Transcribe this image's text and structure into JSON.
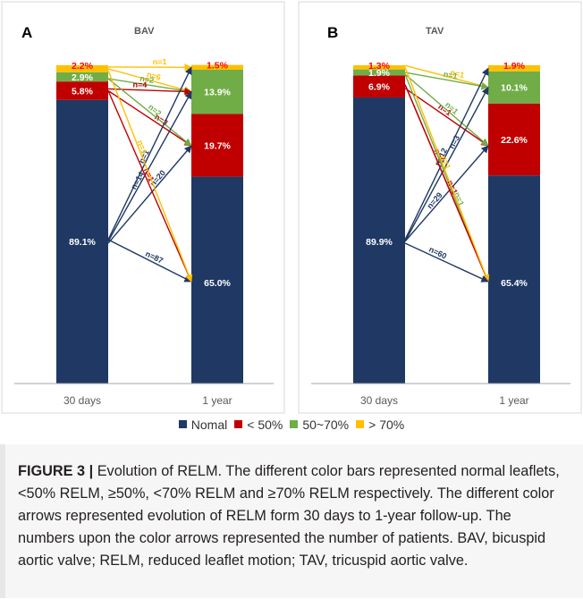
{
  "colors": {
    "normal": "#1f3864",
    "lt50": "#c00000",
    "mid": "#70ad47",
    "gt70": "#ffc000",
    "axis": "#a6a6a6",
    "panel_border": "#d9d9d9",
    "label_red": "#ff0000"
  },
  "legend": [
    {
      "label": "Nomal",
      "color": "#1f3864"
    },
    {
      "label": "< 50%",
      "color": "#c00000"
    },
    {
      "label": "50~70%",
      "color": "#70ad47"
    },
    {
      "label": "> 70%",
      "color": "#ffc000"
    }
  ],
  "chart_data": [
    {
      "type": "bar",
      "panel_letter": "A",
      "title": "BAV",
      "categories": [
        "30 days",
        "1 year"
      ],
      "stack_order": [
        "Nomal",
        "< 50%",
        "50~70%",
        "> 70%"
      ],
      "series": [
        {
          "name": "Nomal",
          "values": [
            89.1,
            65.0
          ],
          "labels": [
            "89.1%",
            "65.0%"
          ]
        },
        {
          "name": "< 50%",
          "values": [
            5.8,
            19.7
          ],
          "labels": [
            "5.8%",
            "19.7%"
          ]
        },
        {
          "name": "50~70%",
          "values": [
            2.9,
            13.9
          ],
          "labels": [
            "2.9%",
            "13.9%"
          ]
        },
        {
          "name": "> 70%",
          "values": [
            2.2,
            1.5
          ],
          "labels": [
            "2.2%",
            "1.5%"
          ]
        }
      ],
      "flows": [
        {
          "from": "> 70%",
          "to": "> 70%",
          "label": "n=1"
        },
        {
          "from": "> 70%",
          "to": "50~70%",
          "label": "n=6"
        },
        {
          "from": "50~70%",
          "to": "50~70%",
          "label": "n=2"
        },
        {
          "from": "< 50%",
          "to": "50~70%",
          "label": "n=4"
        },
        {
          "from": "< 50%",
          "to": "< 50%",
          "label": "n=3"
        },
        {
          "from": "50~70%",
          "to": "< 50%",
          "label": "n=2"
        },
        {
          "from": "Nomal",
          "to": "> 70%",
          "label": "n=1"
        },
        {
          "from": "Nomal",
          "to": "50~70%",
          "label": "n=14"
        },
        {
          "from": "Nomal",
          "to": "< 50%",
          "label": "n=20"
        },
        {
          "from": "Nomal",
          "to": "Nomal",
          "label": "n=87"
        },
        {
          "from": "< 50%",
          "to": "Nomal",
          "label": "n=1"
        },
        {
          "from": "> 70%",
          "to": "Nomal",
          "label": "n=1"
        }
      ]
    },
    {
      "type": "bar",
      "panel_letter": "B",
      "title": "TAV",
      "categories": [
        "30 days",
        "1 year"
      ],
      "stack_order": [
        "Nomal",
        "< 50%",
        "50~70%",
        "> 70%"
      ],
      "series": [
        {
          "name": "Nomal",
          "values": [
            89.9,
            65.4
          ],
          "labels": [
            "89.9%",
            "65.4%"
          ]
        },
        {
          "name": "< 50%",
          "values": [
            6.9,
            22.6
          ],
          "labels": [
            "6.9%",
            "22.6%"
          ]
        },
        {
          "name": "50~70%",
          "values": [
            1.9,
            10.1
          ],
          "labels": [
            "1.9%",
            "10.1%"
          ]
        },
        {
          "name": "> 70%",
          "values": [
            1.3,
            1.9
          ],
          "labels": [
            "1.3%",
            "1.9%"
          ]
        }
      ],
      "flows": [
        {
          "from": "> 70%",
          "to": "50~70%",
          "label": "n=1"
        },
        {
          "from": "50~70%",
          "to": "50~70%",
          "label": "n=1"
        },
        {
          "from": "< 50%",
          "to": "< 50%",
          "label": "n=1"
        },
        {
          "from": "< 50%",
          "to": "Nomal",
          "label": "n=6"
        },
        {
          "from": "Nomal",
          "to": "50~70%",
          "label": "n=3"
        },
        {
          "from": "50~70%",
          "to": "< 50%",
          "label": "n=1"
        },
        {
          "from": "Nomal",
          "to": "> 70%",
          "label": "n=12"
        },
        {
          "from": "Nomal",
          "to": "< 50%",
          "label": "n=29"
        },
        {
          "from": "50~70%",
          "to": "Nomal",
          "label": "n=1"
        },
        {
          "from": "< 50%",
          "to": "Nomal",
          "label": "n=1"
        },
        {
          "from": "> 70%",
          "to": "Nomal",
          "label": "n=1"
        },
        {
          "from": "Nomal",
          "to": "Nomal",
          "label": "n=60"
        }
      ]
    }
  ],
  "caption": {
    "label": "FIGURE 3 |",
    "text": " Evolution of RELM. The different color bars represented normal leaflets, <50% RELM, ≥50%, <70% RELM and ≥70% RELM respectively. The different color arrows represented evolution of RELM form 30 days to 1-year follow-up. The numbers upon the color arrows represented the number of patients. BAV, bicuspid aortic valve; RELM, reduced leaflet motion; TAV, tricuspid aortic valve."
  }
}
